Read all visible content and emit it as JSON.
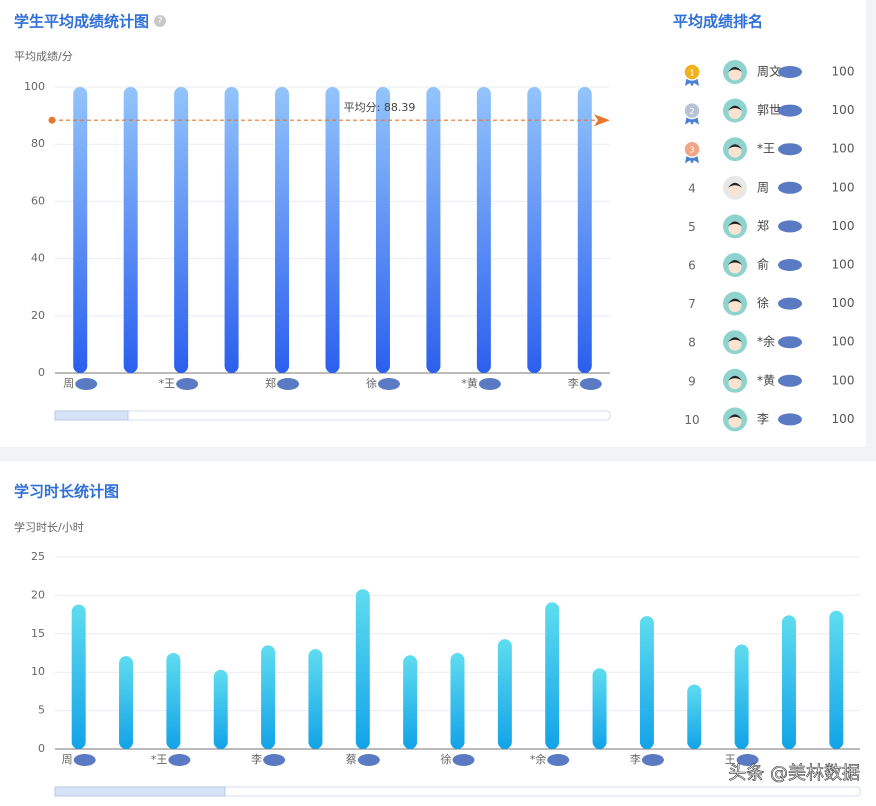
{
  "chart_data": [
    {
      "type": "bar",
      "title": "学生平均成绩统计图",
      "y_label": "平均成绩/分",
      "categories": [
        "周",
        null,
        "*王",
        null,
        "郑",
        null,
        "徐",
        null,
        "*黄",
        null,
        "李"
      ],
      "values": [
        100,
        100,
        100,
        100,
        100,
        100,
        100,
        100,
        100,
        100,
        100
      ],
      "gradient": [
        "#93c4fb",
        "#2b5fee"
      ],
      "ylim": [
        0,
        100
      ],
      "yticks": [
        0,
        20,
        40,
        60,
        80,
        100
      ],
      "grid": true,
      "mark_line": {
        "value": 88.39,
        "label": "平均分: 88.39",
        "color": "#e8762c"
      }
    },
    {
      "type": "bar",
      "title": "学习时长统计图",
      "y_label": "学习时长/小时",
      "categories": [
        "周",
        null,
        "*王",
        null,
        "李",
        null,
        "蔡",
        null,
        "徐",
        null,
        "*余",
        null,
        "李",
        null,
        "王",
        null,
        null
      ],
      "values": [
        18.8,
        12.1,
        12.5,
        10.3,
        13.5,
        13,
        20.8,
        12.2,
        12.5,
        14.3,
        19.1,
        10.5,
        17.3,
        8.4,
        13.6,
        17.4,
        18
      ],
      "gradient": [
        "#5fdcef",
        "#12a3e8"
      ],
      "ylim": [
        0,
        25
      ],
      "yticks": [
        0,
        5,
        10,
        15,
        20,
        25
      ],
      "grid": true
    }
  ],
  "ranking": {
    "title": "平均成绩排名",
    "rows": [
      {
        "rank": 1,
        "name": "周文",
        "score": 100
      },
      {
        "rank": 2,
        "name": "郭世",
        "score": 100
      },
      {
        "rank": 3,
        "name": "*王",
        "score": 100
      },
      {
        "rank": 4,
        "name": "周",
        "score": 100
      },
      {
        "rank": 5,
        "name": "郑",
        "score": 100
      },
      {
        "rank": 6,
        "name": "俞",
        "score": 100
      },
      {
        "rank": 7,
        "name": "徐",
        "score": 100
      },
      {
        "rank": 8,
        "name": "*余",
        "score": 100
      },
      {
        "rank": 9,
        "name": "*黄",
        "score": 100
      },
      {
        "rank": 10,
        "name": "李",
        "score": 100
      }
    ]
  },
  "watermark": "头条 @美林数据"
}
